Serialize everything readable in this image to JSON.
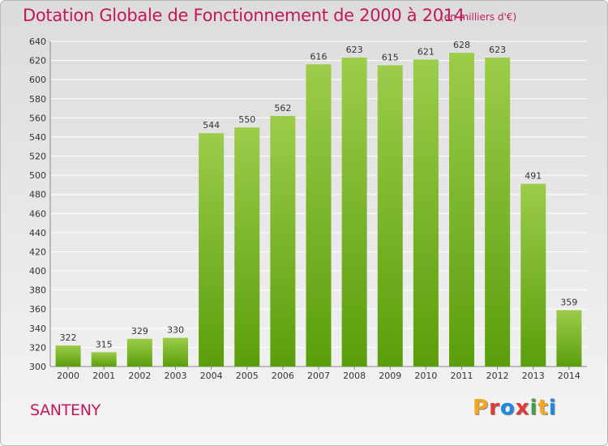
{
  "header": {
    "title": "Dotation Globale de Fonctionnement de 2000 à 2014",
    "subtitle": "(en milliers d'€)"
  },
  "footer": {
    "commune": "SANTENY",
    "logo_letters": [
      "P",
      "r",
      "o",
      "x",
      "i",
      "t",
      "i"
    ],
    "logo_colors": [
      "#f5a623",
      "#e53935",
      "#1e88e5",
      "#e53935",
      "#43a047",
      "#f5a623",
      "#1e88e5"
    ]
  },
  "colors": {
    "bar_top": "#9ccc4a",
    "bar_bottom": "#5a9e0c",
    "text": "#c2185b",
    "grid": "#ffffff"
  },
  "chart_data": {
    "type": "bar",
    "title": "Dotation Globale de Fonctionnement de 2000 à 2014",
    "subtitle": "(en milliers d'€)",
    "categories": [
      "2000",
      "2001",
      "2002",
      "2003",
      "2004",
      "2005",
      "2006",
      "2007",
      "2008",
      "2009",
      "2010",
      "2011",
      "2012",
      "2013",
      "2014"
    ],
    "values": [
      322,
      315,
      329,
      330,
      544,
      550,
      562,
      616,
      623,
      615,
      621,
      628,
      623,
      491,
      359
    ],
    "data_labels": [
      "322",
      "315",
      "329",
      "330",
      "544",
      "550",
      "562",
      "616",
      "623",
      "615",
      "621",
      "628",
      "623",
      "491",
      "359"
    ],
    "ylim": [
      300,
      640
    ],
    "yticks": [
      300,
      320,
      340,
      360,
      380,
      400,
      420,
      440,
      460,
      480,
      500,
      520,
      540,
      560,
      580,
      600,
      620,
      640
    ],
    "grid": true,
    "xlabel": "",
    "ylabel": ""
  }
}
